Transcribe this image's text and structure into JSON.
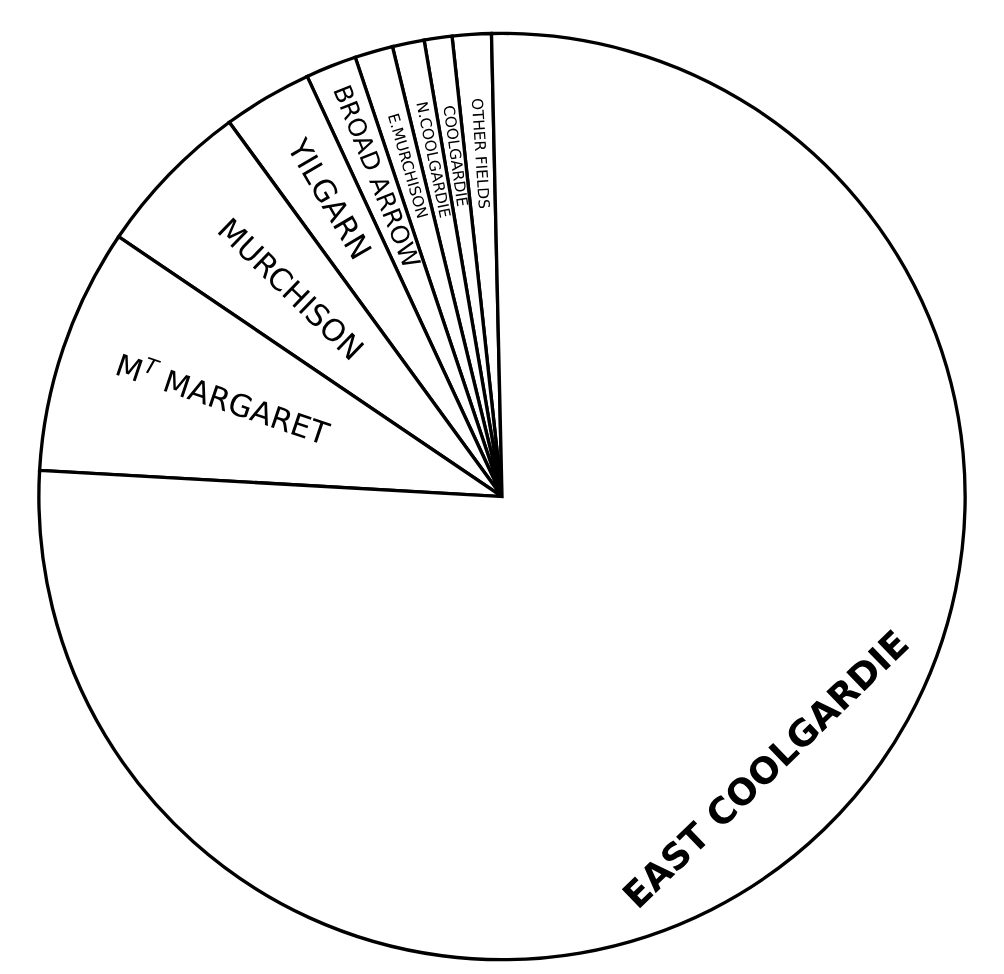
{
  "chart_data": {
    "type": "pie",
    "categories": [
      "OTHER FIELDS",
      "COOLGARDIE",
      "N.COOLGARDIE",
      "E.MURCHISON",
      "BROAD ARROW",
      "YILGARN",
      "MURCHISON",
      "M$^{T}$ MARGARET",
      "EAST COOLGARDIE"
    ],
    "values": [
      1.36,
      0.97,
      1.11,
      1.33,
      1.78,
      3.11,
      5.5,
      8.58,
      76.26
    ],
    "colors": [
      "#ffffff",
      "#ffffff",
      "#ffffff",
      "#ffffff",
      "#ffffff",
      "#ffffff",
      "#ffffff",
      "#ffffff",
      "#ffffff"
    ]
  }
}
